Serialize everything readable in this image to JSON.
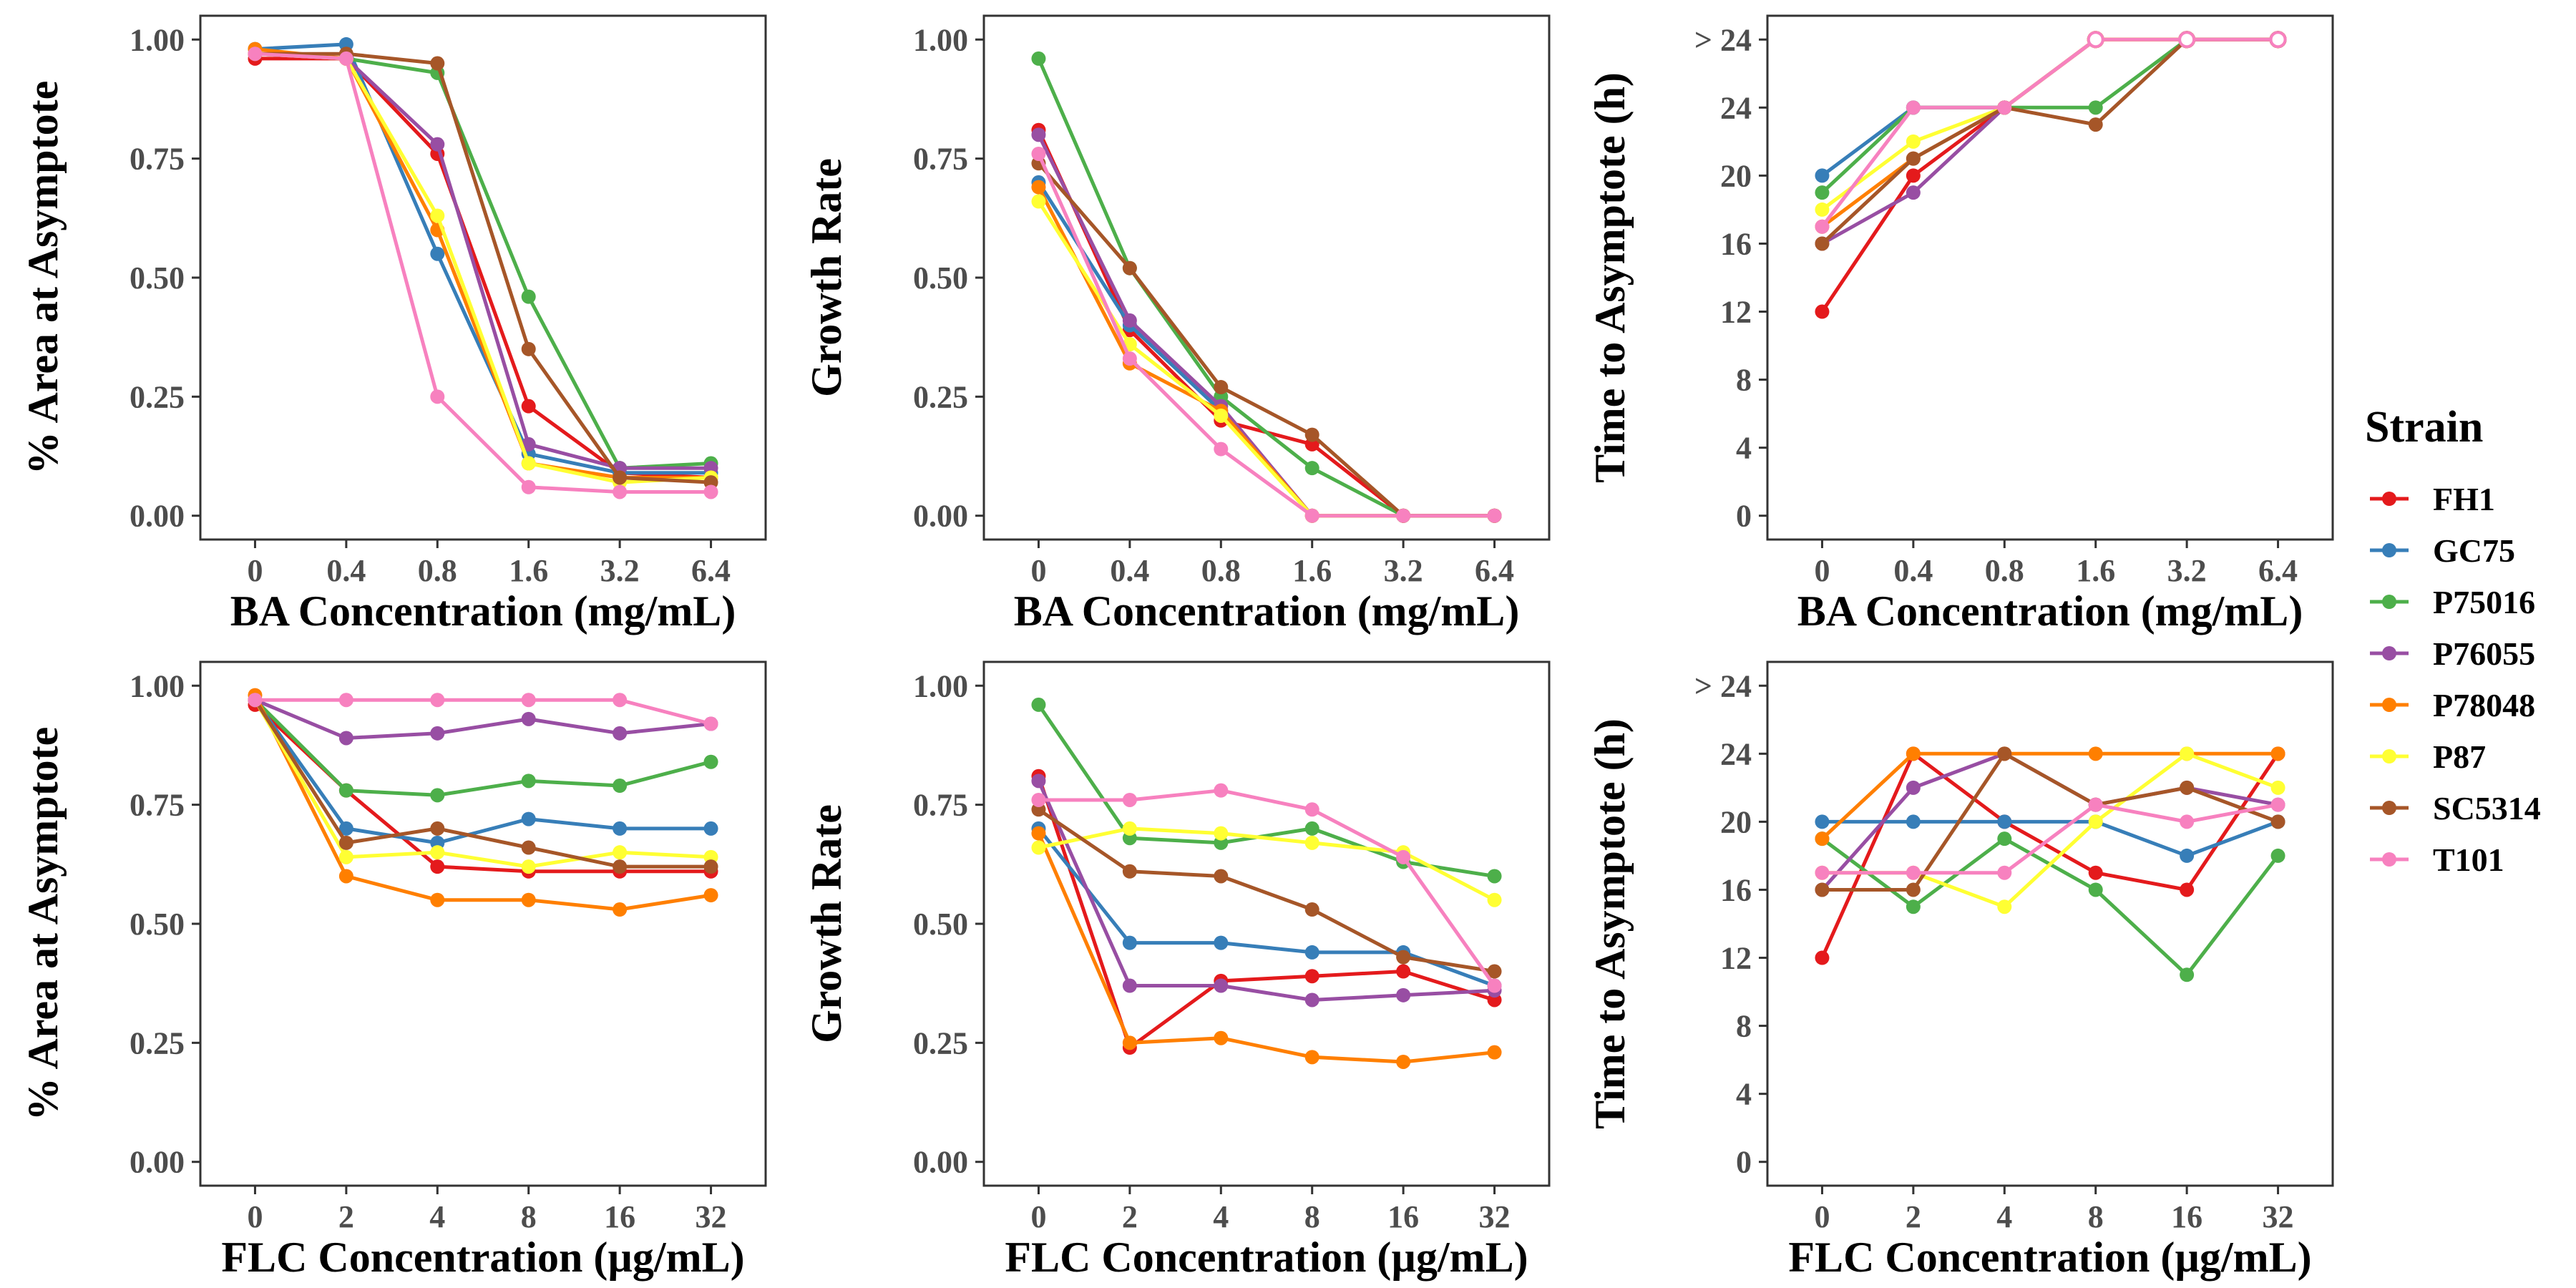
{
  "legend": {
    "title": "Strain",
    "items": [
      {
        "name": "FH1",
        "color": "#E41A1C"
      },
      {
        "name": "GC75",
        "color": "#377EB8"
      },
      {
        "name": "P75016",
        "color": "#4DAF4A"
      },
      {
        "name": "P76055",
        "color": "#984EA3"
      },
      {
        "name": "P78048",
        "color": "#FF7F00"
      },
      {
        "name": "P87",
        "color": "#FFFF33"
      },
      {
        "name": "SC5314",
        "color": "#A65628"
      },
      {
        "name": "T101",
        "color": "#F781BF"
      }
    ]
  },
  "chart_data": [
    {
      "type": "line",
      "xlabel": "BA Concentration (mg/mL)",
      "ylabel": "% Area at Asymptote",
      "categories": [
        "0",
        "0.4",
        "0.8",
        "1.6",
        "3.2",
        "6.4"
      ],
      "yticks": [
        "0.00",
        "0.25",
        "0.50",
        "0.75",
        "1.00"
      ],
      "ylim": [
        -0.05,
        1.05
      ],
      "grid": false,
      "series": [
        {
          "name": "FH1",
          "values": [
            0.96,
            0.96,
            0.76,
            0.23,
            0.09,
            0.08
          ]
        },
        {
          "name": "GC75",
          "values": [
            0.98,
            0.99,
            0.55,
            0.13,
            0.09,
            0.09
          ]
        },
        {
          "name": "P75016",
          "values": [
            0.97,
            0.96,
            0.93,
            0.46,
            0.1,
            0.11
          ]
        },
        {
          "name": "P76055",
          "values": [
            0.97,
            0.96,
            0.78,
            0.15,
            0.1,
            0.1
          ]
        },
        {
          "name": "P78048",
          "values": [
            0.98,
            0.96,
            0.6,
            0.11,
            0.08,
            0.08
          ]
        },
        {
          "name": "P87",
          "values": [
            0.97,
            0.96,
            0.63,
            0.11,
            0.07,
            0.08
          ]
        },
        {
          "name": "SC5314",
          "values": [
            0.97,
            0.97,
            0.95,
            0.35,
            0.08,
            0.07
          ]
        },
        {
          "name": "T101",
          "values": [
            0.97,
            0.96,
            0.25,
            0.06,
            0.05,
            0.05
          ]
        }
      ]
    },
    {
      "type": "line",
      "xlabel": "BA Concentration (mg/mL)",
      "ylabel": "Growth Rate",
      "categories": [
        "0",
        "0.4",
        "0.8",
        "1.6",
        "3.2",
        "6.4"
      ],
      "yticks": [
        "0.00",
        "0.25",
        "0.50",
        "0.75",
        "1.00"
      ],
      "ylim": [
        -0.05,
        1.05
      ],
      "grid": false,
      "series": [
        {
          "name": "FH1",
          "values": [
            0.81,
            0.39,
            0.2,
            0.15,
            0.0,
            0.0
          ]
        },
        {
          "name": "GC75",
          "values": [
            0.7,
            0.4,
            0.22,
            0.0,
            0.0,
            0.0
          ]
        },
        {
          "name": "P75016",
          "values": [
            0.96,
            0.52,
            0.25,
            0.1,
            0.0,
            0.0
          ]
        },
        {
          "name": "P76055",
          "values": [
            0.8,
            0.41,
            0.23,
            0.0,
            0.0,
            0.0
          ]
        },
        {
          "name": "P78048",
          "values": [
            0.69,
            0.32,
            0.22,
            0.0,
            0.0,
            0.0
          ]
        },
        {
          "name": "P87",
          "values": [
            0.66,
            0.36,
            0.21,
            0.0,
            0.0,
            0.0
          ]
        },
        {
          "name": "SC5314",
          "values": [
            0.74,
            0.52,
            0.27,
            0.17,
            0.0,
            0.0
          ]
        },
        {
          "name": "T101",
          "values": [
            0.76,
            0.33,
            0.14,
            0.0,
            0.0,
            0.0
          ]
        }
      ]
    },
    {
      "type": "line",
      "xlabel": "BA Concentration (mg/mL)",
      "ylabel": "Time to Asymptote (h)",
      "categories": [
        "0",
        "0.4",
        "0.8",
        "1.6",
        "3.2",
        "6.4"
      ],
      "yticks": [
        "0",
        "4",
        "8",
        "12",
        "16",
        "20",
        "24",
        "> 24"
      ],
      "yticks_values": [
        0,
        4,
        8,
        12,
        16,
        20,
        24,
        28
      ],
      "ylim": [
        -1.4,
        29.4
      ],
      "grid": false,
      "open_marker_note_values": 28,
      "series": [
        {
          "name": "FH1",
          "values": [
            12,
            20,
            24,
            28,
            28,
            28
          ]
        },
        {
          "name": "GC75",
          "values": [
            20,
            24,
            24,
            28,
            28,
            28
          ]
        },
        {
          "name": "P75016",
          "values": [
            19,
            24,
            24,
            24,
            28,
            28
          ]
        },
        {
          "name": "P76055",
          "values": [
            16,
            19,
            24,
            28,
            28,
            28
          ]
        },
        {
          "name": "P78048",
          "values": [
            17,
            21,
            24,
            28,
            28,
            28
          ]
        },
        {
          "name": "P87",
          "values": [
            18,
            22,
            24,
            28,
            28,
            28
          ]
        },
        {
          "name": "SC5314",
          "values": [
            16,
            21,
            24,
            23,
            28,
            28
          ]
        },
        {
          "name": "T101",
          "values": [
            17,
            24,
            24,
            28,
            28,
            28
          ]
        }
      ]
    },
    {
      "type": "line",
      "xlabel": "FLC Concentration (µg/mL)",
      "ylabel": "% Area at Asymptote",
      "categories": [
        "0",
        "2",
        "4",
        "8",
        "16",
        "32"
      ],
      "yticks": [
        "0.00",
        "0.25",
        "0.50",
        "0.75",
        "1.00"
      ],
      "ylim": [
        -0.05,
        1.05
      ],
      "grid": false,
      "series": [
        {
          "name": "FH1",
          "values": [
            0.96,
            0.78,
            0.62,
            0.61,
            0.61,
            0.61
          ]
        },
        {
          "name": "GC75",
          "values": [
            0.97,
            0.7,
            0.67,
            0.72,
            0.7,
            0.7
          ]
        },
        {
          "name": "P75016",
          "values": [
            0.97,
            0.78,
            0.77,
            0.8,
            0.79,
            0.84
          ]
        },
        {
          "name": "P76055",
          "values": [
            0.97,
            0.89,
            0.9,
            0.93,
            0.9,
            0.92
          ]
        },
        {
          "name": "P78048",
          "values": [
            0.98,
            0.6,
            0.55,
            0.55,
            0.53,
            0.56
          ]
        },
        {
          "name": "P87",
          "values": [
            0.97,
            0.64,
            0.65,
            0.62,
            0.65,
            0.64
          ]
        },
        {
          "name": "SC5314",
          "values": [
            0.97,
            0.67,
            0.7,
            0.66,
            0.62,
            0.62
          ]
        },
        {
          "name": "T101",
          "values": [
            0.97,
            0.97,
            0.97,
            0.97,
            0.97,
            0.92
          ]
        }
      ]
    },
    {
      "type": "line",
      "xlabel": "FLC Concentration (µg/mL)",
      "ylabel": "Growth Rate",
      "categories": [
        "0",
        "2",
        "4",
        "8",
        "16",
        "32"
      ],
      "yticks": [
        "0.00",
        "0.25",
        "0.50",
        "0.75",
        "1.00"
      ],
      "ylim": [
        -0.05,
        1.05
      ],
      "grid": false,
      "series": [
        {
          "name": "FH1",
          "values": [
            0.81,
            0.24,
            0.38,
            0.39,
            0.4,
            0.34
          ]
        },
        {
          "name": "GC75",
          "values": [
            0.7,
            0.46,
            0.46,
            0.44,
            0.44,
            0.37
          ]
        },
        {
          "name": "P75016",
          "values": [
            0.96,
            0.68,
            0.67,
            0.7,
            0.63,
            0.6
          ]
        },
        {
          "name": "P76055",
          "values": [
            0.8,
            0.37,
            0.37,
            0.34,
            0.35,
            0.36
          ]
        },
        {
          "name": "P78048",
          "values": [
            0.69,
            0.25,
            0.26,
            0.22,
            0.21,
            0.23
          ]
        },
        {
          "name": "P87",
          "values": [
            0.66,
            0.7,
            0.69,
            0.67,
            0.65,
            0.55
          ]
        },
        {
          "name": "SC5314",
          "values": [
            0.74,
            0.61,
            0.6,
            0.53,
            0.43,
            0.4
          ]
        },
        {
          "name": "T101",
          "values": [
            0.76,
            0.76,
            0.78,
            0.74,
            0.64,
            0.37
          ]
        }
      ]
    },
    {
      "type": "line",
      "xlabel": "FLC Concentration (µg/mL)",
      "ylabel": "Time to Asymptote (h)",
      "categories": [
        "0",
        "2",
        "4",
        "8",
        "16",
        "32"
      ],
      "yticks": [
        "0",
        "4",
        "8",
        "12",
        "16",
        "20",
        "24",
        "> 24"
      ],
      "yticks_values": [
        0,
        4,
        8,
        12,
        16,
        20,
        24,
        28
      ],
      "ylim": [
        -1.4,
        29.4
      ],
      "grid": false,
      "series": [
        {
          "name": "FH1",
          "values": [
            12,
            24,
            20,
            17,
            16,
            24
          ]
        },
        {
          "name": "GC75",
          "values": [
            20,
            20,
            20,
            20,
            18,
            20
          ]
        },
        {
          "name": "P75016",
          "values": [
            19,
            15,
            19,
            16,
            11,
            18
          ]
        },
        {
          "name": "P76055",
          "values": [
            16,
            22,
            24,
            21,
            22,
            21
          ]
        },
        {
          "name": "P78048",
          "values": [
            19,
            24,
            24,
            24,
            24,
            24
          ]
        },
        {
          "name": "P87",
          "values": [
            17,
            17,
            15,
            20,
            24,
            22
          ]
        },
        {
          "name": "SC5314",
          "values": [
            16,
            16,
            24,
            21,
            22,
            20
          ]
        },
        {
          "name": "T101",
          "values": [
            17,
            17,
            17,
            21,
            20,
            21
          ]
        }
      ]
    }
  ]
}
